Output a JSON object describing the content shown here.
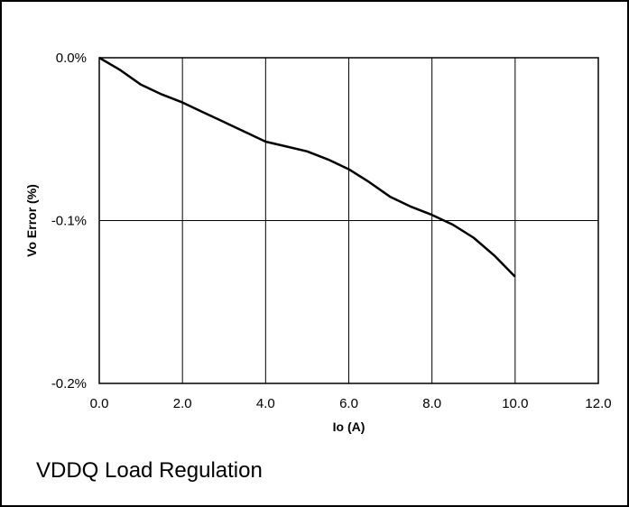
{
  "chart_data": {
    "type": "line",
    "title": "",
    "caption": "VDDQ Load Regulation",
    "xlabel": "Io (A)",
    "ylabel": "Vo Error (%)",
    "xlim": [
      0,
      12
    ],
    "ylim": [
      -0.2,
      0.0
    ],
    "x_ticks": [
      0,
      2,
      4,
      6,
      8,
      10,
      12
    ],
    "x_tick_labels": [
      "0.0",
      "2.0",
      "4.0",
      "6.0",
      "8.0",
      "10.0",
      "12.0"
    ],
    "y_ticks": [
      0.0,
      -0.1,
      -0.2
    ],
    "y_tick_labels": [
      "0.0%",
      "-0.1%",
      "-0.2%"
    ],
    "grid": true,
    "series": [
      {
        "color": "#000000",
        "x": [
          0,
          0.5,
          1,
          1.5,
          2,
          2.5,
          3,
          3.5,
          4,
          4.5,
          5,
          5.5,
          6,
          6.5,
          7,
          7.5,
          8,
          8.5,
          9,
          9.5,
          10
        ],
        "y": [
          0.0,
          -0.0075,
          -0.0165,
          -0.0225,
          -0.0275,
          -0.0335,
          -0.0395,
          -0.0455,
          -0.0515,
          -0.0545,
          -0.0575,
          -0.0625,
          -0.0685,
          -0.0765,
          -0.0855,
          -0.0915,
          -0.0965,
          -0.1025,
          -0.1105,
          -0.1215,
          -0.1345
        ]
      }
    ]
  }
}
